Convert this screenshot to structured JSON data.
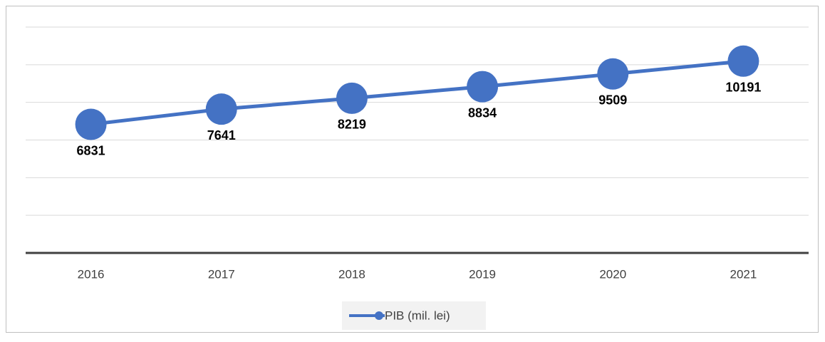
{
  "chart_data": {
    "type": "line",
    "categories": [
      "2016",
      "2017",
      "2018",
      "2019",
      "2020",
      "2021"
    ],
    "series": [
      {
        "name": "PIB (mil. lei)",
        "color": "#4472c4",
        "values": [
          6831,
          7641,
          8219,
          8834,
          9509,
          10191
        ]
      }
    ],
    "ylim": [
      0,
      12000
    ],
    "yticks": [
      0,
      2000,
      4000,
      6000,
      8000,
      10000,
      12000
    ],
    "grid": true,
    "legend": "bottom"
  }
}
